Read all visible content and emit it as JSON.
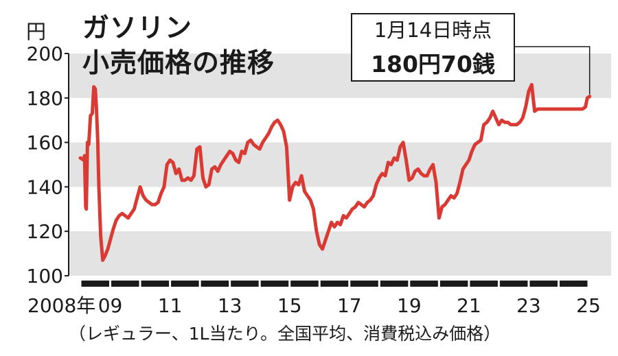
{
  "chart_data": {
    "type": "line",
    "title": "ガソリン小売価格の推移",
    "title_lines": [
      "ガソリン",
      "小売価格の推移"
    ],
    "ylabel": "円",
    "ylim": [
      100,
      200
    ],
    "yticks": [
      100,
      120,
      140,
      160,
      180,
      200
    ],
    "xlim": [
      2008.0,
      2025.0
    ],
    "xtick_labels": [
      {
        "year": 2008,
        "label": "2008年"
      },
      {
        "year": 2009,
        "label": "09"
      },
      {
        "year": 2011,
        "label": "11"
      },
      {
        "year": 2013,
        "label": "13"
      },
      {
        "year": 2015,
        "label": "15"
      },
      {
        "year": 2017,
        "label": "17"
      },
      {
        "year": 2019,
        "label": "19"
      },
      {
        "year": 2021,
        "label": "21"
      },
      {
        "year": 2023,
        "label": "23"
      },
      {
        "year": 2025,
        "label": "25"
      }
    ],
    "band_color": "#e3e3e3",
    "line_color": "#d93a33",
    "series": [
      {
        "x": [
          2008.0,
          2008.12,
          2008.14,
          2008.18,
          2008.2,
          2008.24,
          2008.28,
          2008.34,
          2008.4,
          2008.45,
          2008.5,
          2008.54,
          2008.58,
          2008.62,
          2008.68,
          2008.75,
          2008.83,
          2008.92,
          2009.0,
          2009.1,
          2009.2,
          2009.3,
          2009.4,
          2009.5,
          2009.6,
          2009.7,
          2009.8,
          2009.9,
          2010.0,
          2010.1,
          2010.2,
          2010.3,
          2010.4,
          2010.5,
          2010.6,
          2010.7,
          2010.8,
          2010.9,
          2011.0,
          2011.1,
          2011.2,
          2011.3,
          2011.4,
          2011.5,
          2011.6,
          2011.7,
          2011.8,
          2011.9,
          2012.0,
          2012.1,
          2012.2,
          2012.3,
          2012.4,
          2012.5,
          2012.6,
          2012.7,
          2012.8,
          2012.9,
          2013.0,
          2013.1,
          2013.2,
          2013.3,
          2013.4,
          2013.5,
          2013.6,
          2013.7,
          2013.8,
          2013.9,
          2014.0,
          2014.1,
          2014.2,
          2014.3,
          2014.4,
          2014.5,
          2014.6,
          2014.7,
          2014.8,
          2014.9,
          2015.0,
          2015.1,
          2015.2,
          2015.3,
          2015.4,
          2015.5,
          2015.6,
          2015.7,
          2015.8,
          2015.9,
          2016.0,
          2016.1,
          2016.2,
          2016.3,
          2016.4,
          2016.5,
          2016.6,
          2016.7,
          2016.8,
          2016.9,
          2017.0,
          2017.1,
          2017.2,
          2017.3,
          2017.4,
          2017.5,
          2017.6,
          2017.7,
          2017.8,
          2017.9,
          2018.0,
          2018.1,
          2018.2,
          2018.3,
          2018.4,
          2018.5,
          2018.6,
          2018.7,
          2018.8,
          2018.9,
          2019.0,
          2019.1,
          2019.2,
          2019.3,
          2019.4,
          2019.5,
          2019.6,
          2019.7,
          2019.8,
          2019.9,
          2020.0,
          2020.1,
          2020.2,
          2020.3,
          2020.4,
          2020.5,
          2020.6,
          2020.7,
          2020.8,
          2020.9,
          2021.0,
          2021.1,
          2021.2,
          2021.3,
          2021.4,
          2021.5,
          2021.6,
          2021.7,
          2021.8,
          2021.9,
          2022.0,
          2022.1,
          2022.2,
          2022.3,
          2022.4,
          2022.5,
          2022.6,
          2022.7,
          2022.8,
          2022.9,
          2023.0,
          2023.1,
          2023.2,
          2023.3,
          2023.4,
          2023.5,
          2023.6,
          2023.7,
          2023.8,
          2023.9,
          2024.0,
          2024.1,
          2024.2,
          2024.3,
          2024.4,
          2024.5,
          2024.6,
          2024.7,
          2024.8,
          2024.9,
          2024.96,
          2025.04
        ],
        "values": [
          153,
          152,
          154,
          131,
          130,
          160,
          159,
          172,
          173,
          185,
          184,
          175,
          162,
          140,
          118,
          107,
          109,
          112,
          116,
          121,
          125,
          127,
          128,
          127,
          126,
          128,
          130,
          135,
          140,
          136,
          134,
          133,
          132,
          132,
          133,
          137,
          140,
          150,
          152,
          151,
          146,
          148,
          143,
          143,
          144,
          143,
          145,
          157,
          158,
          144,
          140,
          141,
          148,
          149,
          147,
          150,
          152,
          154,
          156,
          155,
          152,
          151,
          156,
          155,
          160,
          161,
          159,
          158,
          157,
          160,
          162,
          164,
          167,
          169,
          170,
          168,
          165,
          158,
          134,
          140,
          142,
          141,
          145,
          138,
          136,
          134,
          130,
          120,
          114,
          112,
          116,
          120,
          124,
          122,
          124,
          123,
          127,
          126,
          128,
          130,
          131,
          133,
          132,
          131,
          133,
          134,
          136,
          141,
          144,
          146,
          145,
          151,
          150,
          153,
          152,
          158,
          160,
          152,
          143,
          144,
          147,
          148,
          146,
          145,
          145,
          148,
          150,
          142,
          126,
          131,
          132,
          134,
          136,
          135,
          137,
          142,
          148,
          150,
          152,
          156,
          159,
          160,
          161,
          168,
          169,
          171,
          174,
          171,
          168,
          170,
          169,
          169,
          168,
          168,
          168,
          169,
          171,
          176,
          183,
          186,
          174,
          175,
          175,
          175,
          175,
          175,
          175,
          175,
          175,
          175,
          175,
          175,
          175,
          175,
          175,
          175,
          175,
          176,
          180,
          180.7
        ]
      }
    ]
  },
  "header": {
    "unit": "円",
    "title_line1": "ガソリン",
    "title_line2": "小売価格の推移"
  },
  "callout": {
    "line1": "1月14日時点",
    "line2": "180円70銭"
  },
  "footnote": "（レギュラー、1L当たり。全国平均、消費税込み価格）"
}
